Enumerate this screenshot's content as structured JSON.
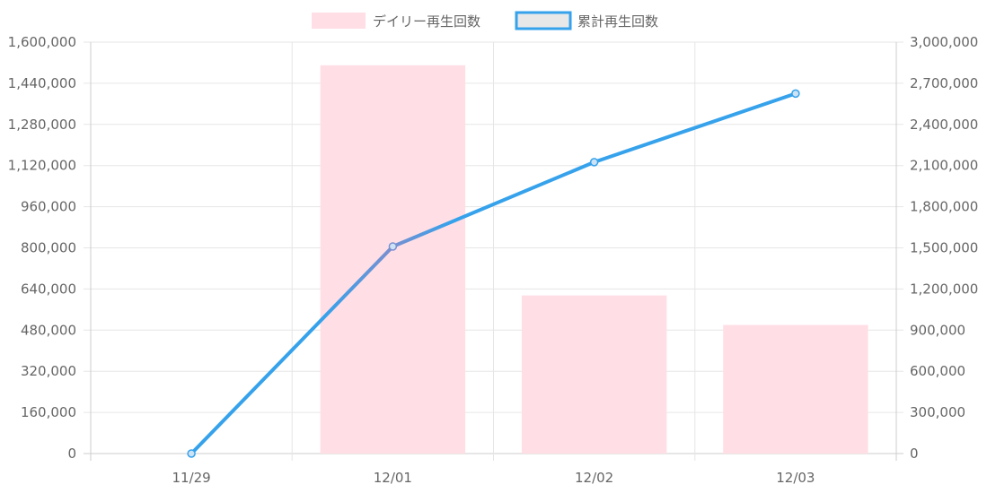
{
  "chart_data": {
    "type": "bar",
    "categories": [
      "11/29",
      "12/01",
      "12/02",
      "12/03"
    ],
    "series": [
      {
        "name": "デイリー再生回数",
        "type": "bar",
        "axis": "left",
        "values": [
          0,
          1510000,
          615000,
          500000
        ],
        "fill": "#ffdfe5",
        "stroke": "#ffdfe5"
      },
      {
        "name": "累計再生回数",
        "type": "line",
        "axis": "right",
        "values": [
          0,
          1510000,
          2125000,
          2625000
        ],
        "stroke": "#36a2eb",
        "stroke_mid": "#7a8fd0",
        "point_fill": "#cde3f5"
      }
    ],
    "y_left": {
      "min": 0,
      "max": 1600000,
      "ticks": [
        "0",
        "160,000",
        "320,000",
        "480,000",
        "640,000",
        "800,000",
        "960,000",
        "1,120,000",
        "1,280,000",
        "1,440,000",
        "1,600,000"
      ]
    },
    "y_right": {
      "min": 0,
      "max": 3000000,
      "ticks": [
        "0",
        "300,000",
        "600,000",
        "900,000",
        "1,200,000",
        "1,500,000",
        "1,800,000",
        "2,100,000",
        "2,400,000",
        "2,700,000",
        "3,000,000"
      ]
    },
    "grid": true,
    "legend_position": "top-center",
    "colors": {
      "grid": "#e6e6e6",
      "grid_zero": "#cccccc",
      "tick_text": "#666666"
    }
  }
}
